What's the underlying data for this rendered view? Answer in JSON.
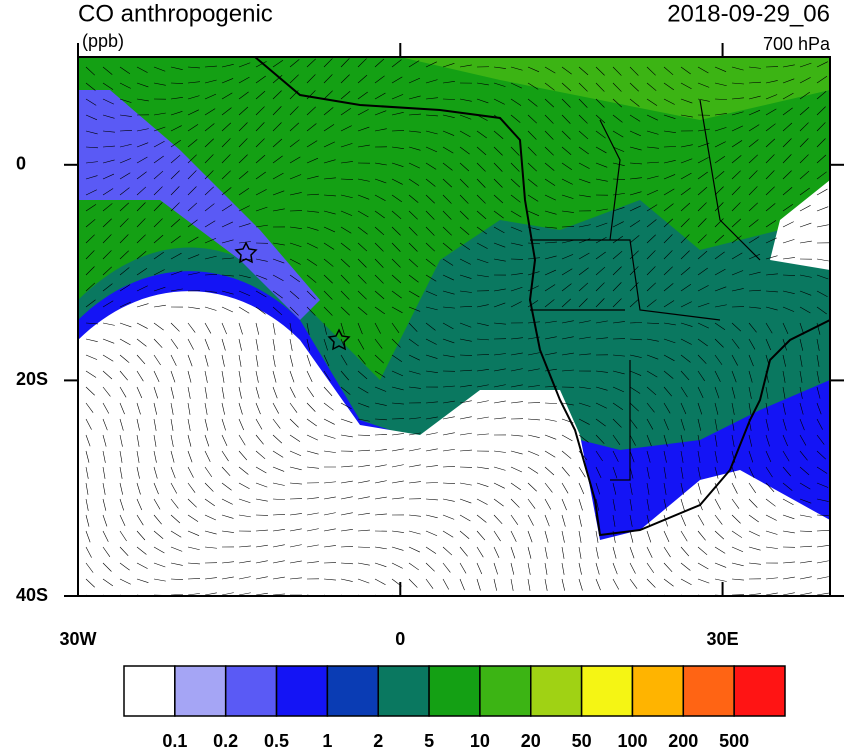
{
  "map": {
    "title": "CO anthropogenic",
    "units": "(ppb)",
    "date": "2018-09-29_06",
    "level": "700 hPa",
    "xlim": [
      -30,
      40
    ],
    "ylim": [
      -40,
      10
    ],
    "xticks": [
      {
        "value": -30,
        "label": "30W"
      },
      {
        "value": 0,
        "label": "0"
      },
      {
        "value": 30,
        "label": "30E"
      }
    ],
    "yticks": [
      {
        "value": 0,
        "label": "0"
      },
      {
        "value": -20,
        "label": "20S"
      },
      {
        "value": -40,
        "label": "40S"
      }
    ]
  },
  "colorbar": {
    "colors": [
      "#ffffff",
      "#a5a5f5",
      "#5a5af5",
      "#1414f5",
      "#0a3cb4",
      "#0a7860",
      "#14a014",
      "#3cb414",
      "#a0d214",
      "#f5f514",
      "#ffb400",
      "#ff6414",
      "#ff1414"
    ],
    "labels": [
      0.1,
      0.2,
      0.5,
      1,
      2,
      5,
      10,
      20,
      50,
      100,
      200,
      500
    ]
  }
}
